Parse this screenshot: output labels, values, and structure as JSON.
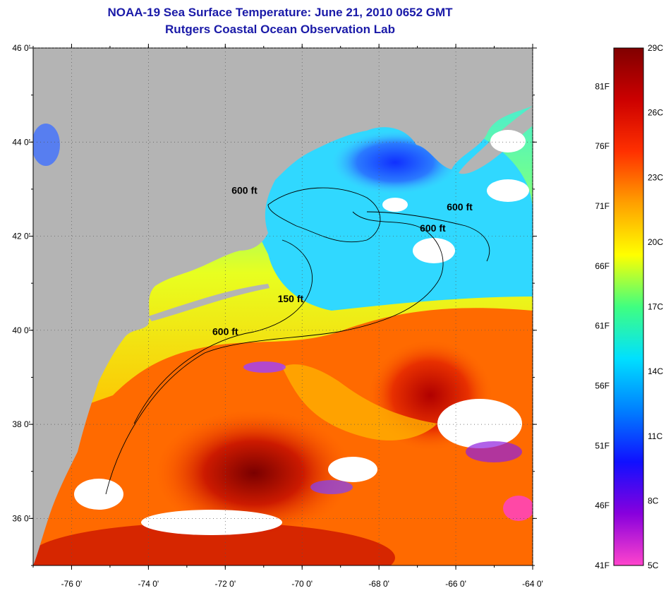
{
  "title": "NOAA-19 Sea Surface Temperature:  June 21, 2010 0652 GMT",
  "subtitle": "Rutgers Coastal Ocean Observation Lab",
  "map": {
    "lat_labels": [
      "46 0'",
      "44 0'",
      "42 0'",
      "40 0'",
      "38 0'",
      "36 0'"
    ],
    "lon_labels": [
      "-76 0'",
      "-74 0'",
      "-72 0'",
      "-70 0'",
      "-68 0'",
      "-66 0'",
      "-64 0'"
    ],
    "lat_range": [
      35,
      46
    ],
    "lon_range": [
      -77,
      -64
    ],
    "land_color": "#b4b4b4",
    "cloud_color": "#ffffff",
    "contours": [
      {
        "label": "600 ft",
        "lon": -71.5,
        "lat": 42.9
      },
      {
        "label": "600 ft",
        "lon": -65.9,
        "lat": 42.55
      },
      {
        "label": "600 ft",
        "lon": -66.6,
        "lat": 42.1
      },
      {
        "label": "150 ft",
        "lon": -70.3,
        "lat": 40.6
      },
      {
        "label": "600 ft",
        "lon": -72.0,
        "lat": 39.9
      }
    ]
  },
  "colorbar": {
    "fahrenheit_labels": [
      "81F",
      "76F",
      "71F",
      "66F",
      "61F",
      "56F",
      "51F",
      "46F",
      "41F"
    ],
    "celsius_labels": [
      "29C",
      "26C",
      "23C",
      "20C",
      "17C",
      "14C",
      "11C",
      "8C",
      "5C"
    ],
    "celsius_range": [
      5,
      29
    ],
    "fahrenheit_range": [
      41,
      84.2
    ],
    "colors": [
      "#ff44cc",
      "#8800dd",
      "#1010ff",
      "#0080ff",
      "#00e0ff",
      "#40ff80",
      "#ffff00",
      "#ffa000",
      "#ff3000",
      "#cc0000",
      "#800000"
    ]
  }
}
